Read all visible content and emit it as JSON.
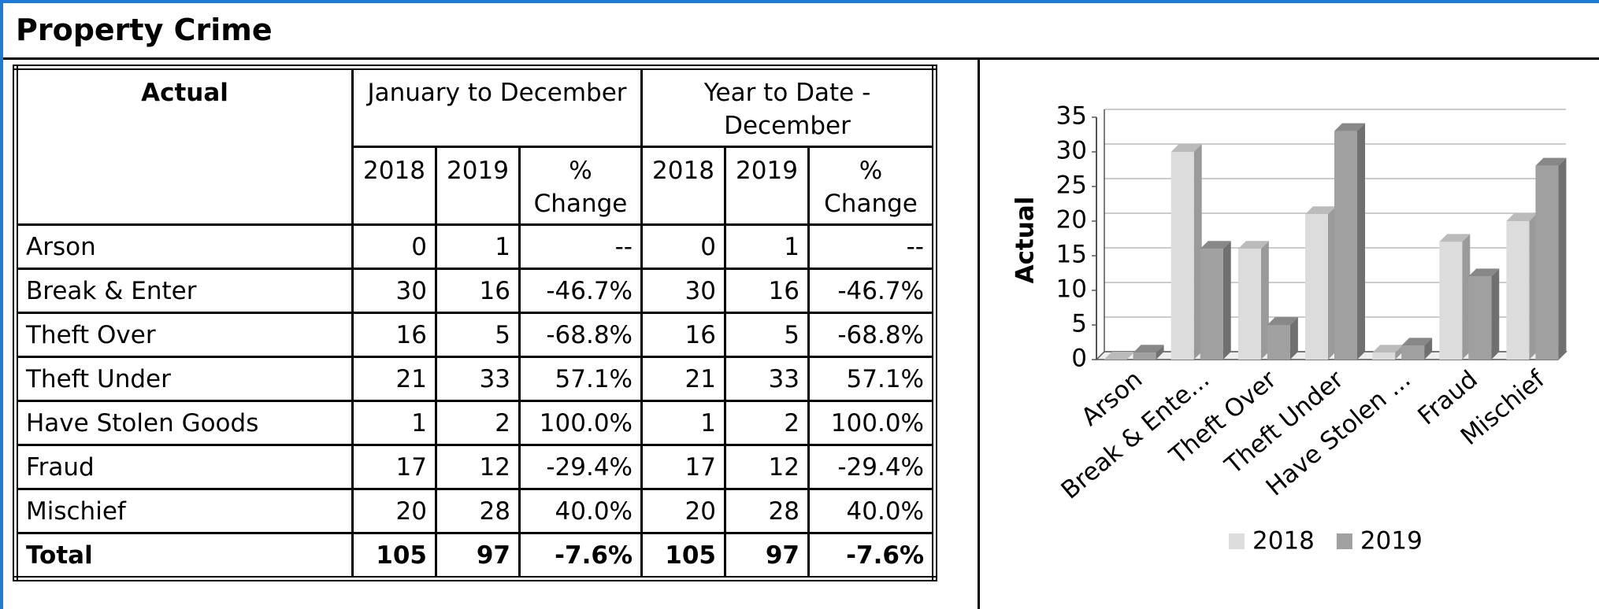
{
  "title": "Property Crime",
  "table": {
    "header": [
      "Actual",
      "January to December",
      "Year to Date - December"
    ],
    "subheader": [
      "2018",
      "2019",
      "% Change",
      "2018",
      "2019",
      "% Change"
    ],
    "rows": [
      [
        "Arson",
        "0",
        "1",
        "--",
        "0",
        "1",
        "--"
      ],
      [
        "Break & Enter",
        "30",
        "16",
        "-46.7%",
        "30",
        "16",
        "-46.7%"
      ],
      [
        "Theft Over",
        "16",
        "5",
        "-68.8%",
        "16",
        "5",
        "-68.8%"
      ],
      [
        "Theft Under",
        "21",
        "33",
        "57.1%",
        "21",
        "33",
        "57.1%"
      ],
      [
        "Have Stolen Goods",
        "1",
        "2",
        "100.0%",
        "1",
        "2",
        "100.0%"
      ],
      [
        "Fraud",
        "17",
        "12",
        "-29.4%",
        "17",
        "12",
        "-29.4%"
      ],
      [
        "Mischief",
        "20",
        "28",
        "40.0%",
        "20",
        "28",
        "40.0%"
      ]
    ],
    "total": [
      "Total",
      "105",
      "97",
      "-7.6%",
      "105",
      "97",
      "-7.6%"
    ]
  },
  "chart_data": {
    "type": "bar3d",
    "y_label": "Actual",
    "categories": [
      "Arson",
      "Break & Ente...",
      "Theft Over",
      "Theft Under",
      "Have Stolen ...",
      "Fraud",
      "Mischief"
    ],
    "series": [
      {
        "name": "2018",
        "color": "#dcdcdc",
        "values": [
          0,
          30,
          16,
          21,
          1,
          17,
          20
        ]
      },
      {
        "name": "2019",
        "color": "#a0a0a0",
        "values": [
          1,
          16,
          5,
          33,
          2,
          12,
          28
        ]
      }
    ],
    "ylim": [
      0,
      35
    ],
    "yticks": [
      0,
      5,
      10,
      15,
      20,
      25,
      30,
      35
    ],
    "grid": true,
    "legend": "bottom"
  }
}
